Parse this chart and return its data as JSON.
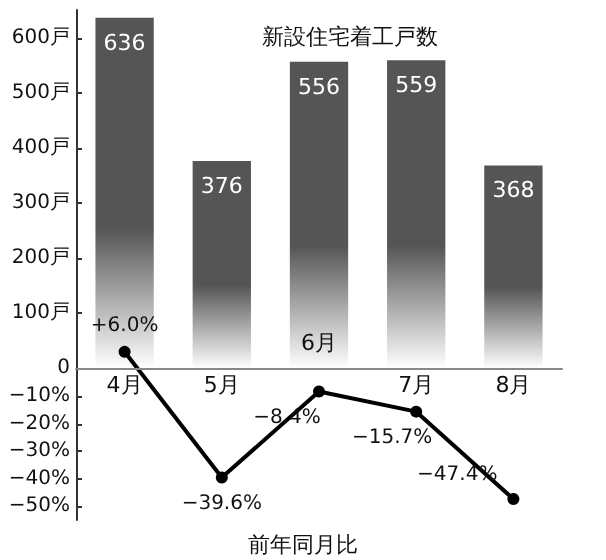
{
  "chart_data": {
    "type": "bar",
    "title": "新設住宅着工戸数",
    "categories": [
      "4月",
      "5月",
      "6月",
      "7月",
      "8月"
    ],
    "series": [
      {
        "color": "#555555",
        "values": [
          636,
          376,
          556,
          559,
          368
        ]
      },
      {
        "type": "line",
        "axis": "y2",
        "color": "#000000",
        "values": [
          6.0,
          -39.6,
          -8.4,
          -15.7,
          -47.4
        ],
        "value_labels": [
          "+6.0%",
          "−39.6%",
          "−8.4%",
          "−15.7%",
          "−47.4%"
        ]
      }
    ],
    "data_labels": true,
    "ylim": [
      -275,
      650
    ],
    "yticks": [
      {
        "value": 0,
        "label": "0"
      },
      {
        "value": 100,
        "label": "100戸"
      },
      {
        "value": 200,
        "label": "200戸"
      },
      {
        "value": 300,
        "label": "300戸"
      },
      {
        "value": 400,
        "label": "400戸"
      },
      {
        "value": 500,
        "label": "500戸"
      },
      {
        "value": 600,
        "label": "600戸"
      }
    ],
    "y2lim": [
      -55,
      130
    ],
    "y2ticks": [
      {
        "value": -50,
        "label": "−50%"
      },
      {
        "value": -40,
        "label": "−40%"
      },
      {
        "value": -30,
        "label": "−30%"
      },
      {
        "value": -20,
        "label": "−20%"
      },
      {
        "value": -10,
        "label": "−10%"
      }
    ],
    "annotations": [
      "前年同月比"
    ],
    "marker": "circle",
    "line_style": "solid",
    "grid": false
  }
}
